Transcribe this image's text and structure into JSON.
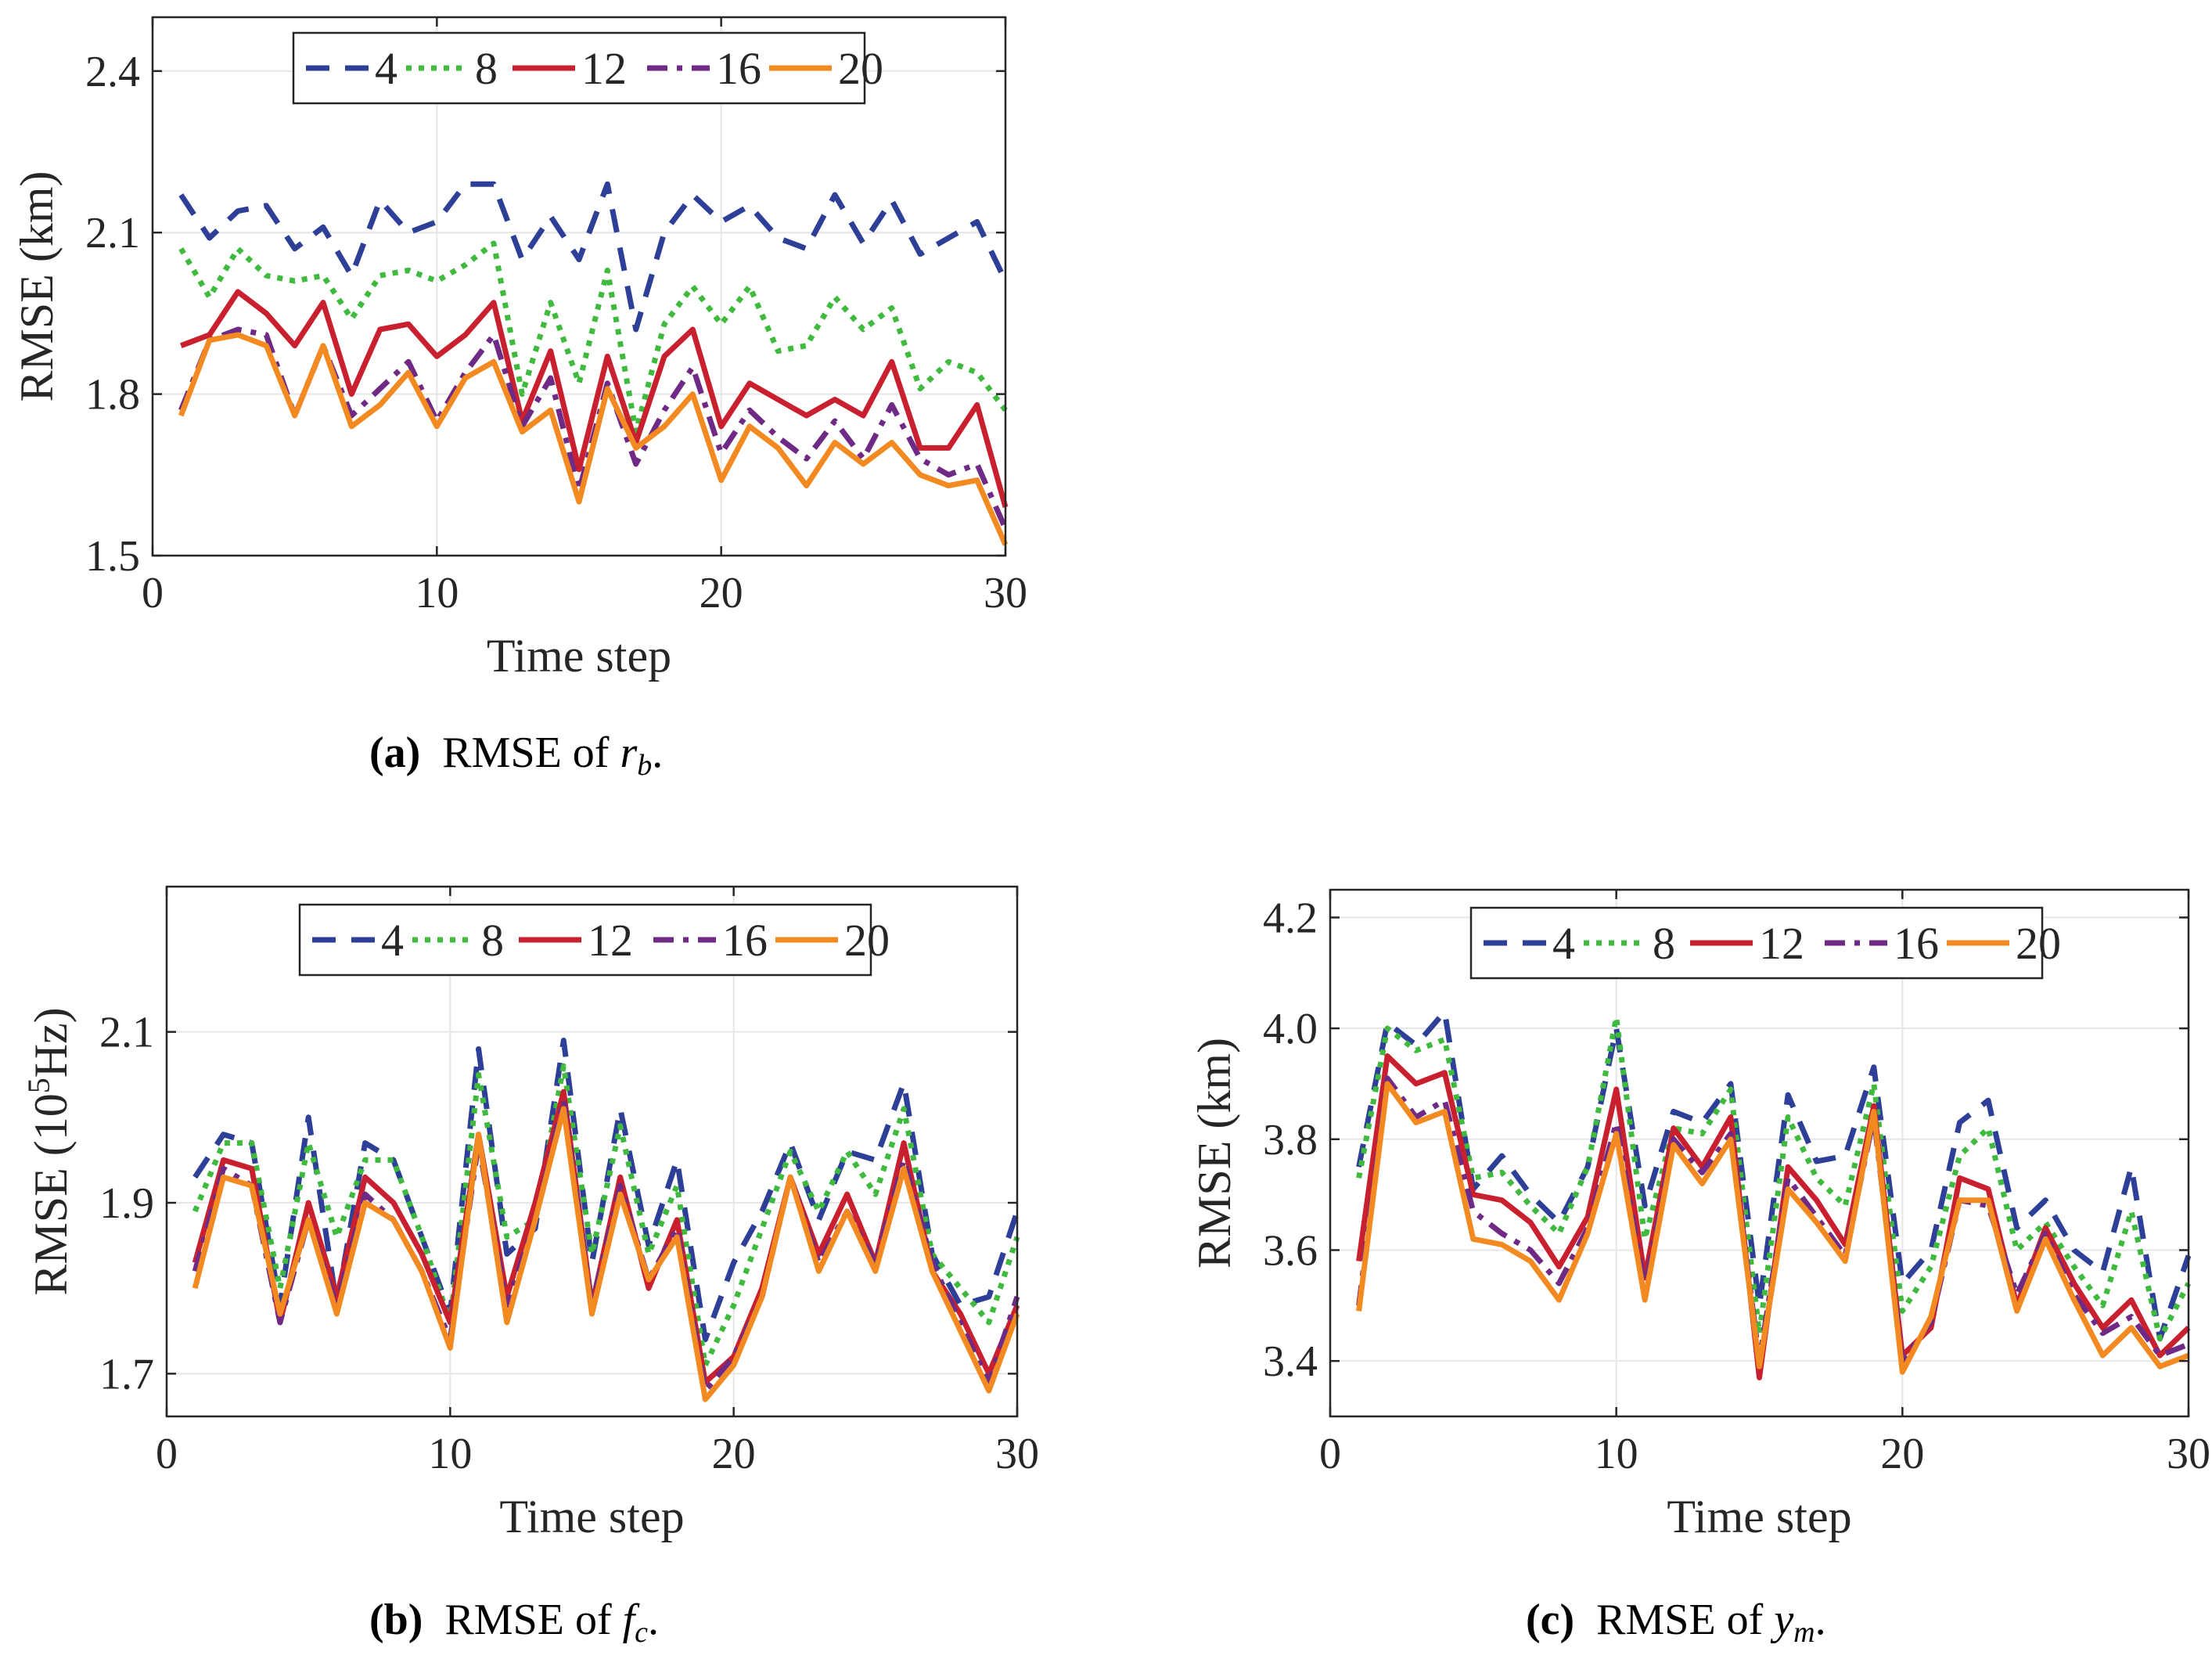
{
  "colors": {
    "s4": "#2e3f97",
    "s8": "#3fba3f",
    "s12": "#c8202e",
    "s16": "#6e2a85",
    "s20": "#f28a21",
    "axis": "#262626",
    "grid": "#e6e6e6"
  },
  "chart_data": [
    {
      "id": "a",
      "type": "line",
      "ylabel": "RMSE (km)",
      "ylabel_parts": [
        {
          "t": "RMSE (km)"
        }
      ],
      "xlabel": "Time step",
      "xlim": [
        0,
        30
      ],
      "ylim": [
        1.5,
        2.5
      ],
      "xticks": [
        0,
        10,
        20,
        30
      ],
      "yticks": [
        1.5,
        1.8,
        2.1,
        2.4
      ],
      "ytick_labels": [
        "1.5",
        "1.8",
        "2.1",
        "2.4"
      ],
      "x": [
        1,
        2,
        3,
        4,
        5,
        6,
        7,
        8,
        9,
        10,
        11,
        12,
        13,
        14,
        15,
        16,
        17,
        18,
        19,
        20,
        21,
        22,
        23,
        24,
        25,
        26,
        27,
        28,
        29,
        30
      ],
      "series": [
        {
          "name": "4",
          "style": "dash",
          "values": [
            2.17,
            2.09,
            2.14,
            2.15,
            2.07,
            2.11,
            2.02,
            2.16,
            2.1,
            2.12,
            2.19,
            2.19,
            2.05,
            2.13,
            2.05,
            2.19,
            1.92,
            2.1,
            2.17,
            2.12,
            2.15,
            2.09,
            2.07,
            2.17,
            2.08,
            2.16,
            2.06,
            2.09,
            2.12,
            2.01
          ]
        },
        {
          "name": "8",
          "style": "dot",
          "values": [
            2.07,
            1.98,
            2.07,
            2.02,
            2.01,
            2.02,
            1.94,
            2.02,
            2.03,
            2.01,
            2.04,
            2.08,
            1.8,
            1.97,
            1.82,
            2.03,
            1.73,
            1.93,
            2.0,
            1.93,
            2.0,
            1.88,
            1.89,
            1.98,
            1.92,
            1.96,
            1.81,
            1.86,
            1.84,
            1.77
          ]
        },
        {
          "name": "12",
          "style": "solid",
          "values": [
            1.89,
            1.91,
            1.99,
            1.95,
            1.89,
            1.97,
            1.8,
            1.92,
            1.93,
            1.87,
            1.91,
            1.97,
            1.75,
            1.88,
            1.66,
            1.87,
            1.71,
            1.87,
            1.92,
            1.74,
            1.82,
            1.79,
            1.76,
            1.79,
            1.76,
            1.86,
            1.7,
            1.7,
            1.78,
            1.59
          ]
        },
        {
          "name": "16",
          "style": "dashdot",
          "values": [
            1.77,
            1.9,
            1.92,
            1.91,
            1.76,
            1.89,
            1.76,
            1.81,
            1.86,
            1.75,
            1.84,
            1.91,
            1.74,
            1.83,
            1.62,
            1.82,
            1.67,
            1.77,
            1.85,
            1.69,
            1.77,
            1.72,
            1.68,
            1.75,
            1.68,
            1.78,
            1.68,
            1.65,
            1.67,
            1.55
          ]
        },
        {
          "name": "20",
          "style": "solid",
          "values": [
            1.76,
            1.9,
            1.91,
            1.89,
            1.76,
            1.89,
            1.74,
            1.78,
            1.84,
            1.74,
            1.83,
            1.86,
            1.73,
            1.77,
            1.6,
            1.81,
            1.7,
            1.74,
            1.8,
            1.64,
            1.74,
            1.7,
            1.63,
            1.71,
            1.67,
            1.71,
            1.65,
            1.63,
            1.64,
            1.52
          ]
        }
      ]
    },
    {
      "id": "b",
      "type": "line",
      "ylabel": "RMSE (10^5Hz)",
      "ylabel_parts": [
        {
          "t": "RMSE (10"
        },
        {
          "t": "5",
          "sup": true
        },
        {
          "t": "Hz)"
        }
      ],
      "xlabel": "Time step",
      "xlim": [
        0,
        30
      ],
      "ylim": [
        1.65,
        2.27
      ],
      "xticks": [
        0,
        10,
        20,
        30
      ],
      "yticks": [
        1.7,
        1.9,
        2.1
      ],
      "ytick_labels": [
        "1.7",
        "1.9",
        "2.1"
      ],
      "x": [
        1,
        2,
        3,
        4,
        5,
        6,
        7,
        8,
        9,
        10,
        11,
        12,
        13,
        14,
        15,
        16,
        17,
        18,
        19,
        20,
        21,
        22,
        23,
        24,
        25,
        26,
        27,
        28,
        29,
        30
      ],
      "series": [
        {
          "name": "4",
          "style": "dash",
          "values": [
            1.93,
            1.98,
            1.97,
            1.78,
            2.0,
            1.78,
            1.97,
            1.95,
            1.86,
            1.77,
            2.08,
            1.84,
            1.87,
            2.09,
            1.83,
            2.01,
            1.85,
            1.95,
            1.74,
            1.83,
            1.89,
            1.97,
            1.88,
            1.96,
            1.95,
            2.04,
            1.84,
            1.78,
            1.79,
            1.89
          ]
        },
        {
          "name": "8",
          "style": "dot",
          "values": [
            1.89,
            1.97,
            1.97,
            1.8,
            1.97,
            1.86,
            1.95,
            1.95,
            1.86,
            1.76,
            2.05,
            1.86,
            1.88,
            2.06,
            1.84,
            1.99,
            1.84,
            1.92,
            1.71,
            1.78,
            1.87,
            1.96,
            1.89,
            1.96,
            1.91,
            2.01,
            1.84,
            1.8,
            1.76,
            1.86
          ]
        },
        {
          "name": "12",
          "style": "solid",
          "values": [
            1.83,
            1.95,
            1.94,
            1.76,
            1.9,
            1.79,
            1.93,
            1.9,
            1.84,
            1.76,
            1.98,
            1.79,
            1.9,
            2.03,
            1.78,
            1.93,
            1.8,
            1.88,
            1.69,
            1.72,
            1.8,
            1.93,
            1.84,
            1.91,
            1.83,
            1.97,
            1.82,
            1.77,
            1.7,
            1.78
          ]
        },
        {
          "name": "16",
          "style": "dashdot",
          "values": [
            1.82,
            1.94,
            1.92,
            1.76,
            1.88,
            1.78,
            1.91,
            1.88,
            1.82,
            1.74,
            1.97,
            1.78,
            1.88,
            2.02,
            1.78,
            1.92,
            1.81,
            1.87,
            1.68,
            1.72,
            1.79,
            1.93,
            1.83,
            1.89,
            1.83,
            1.95,
            1.83,
            1.76,
            1.69,
            1.79
          ]
        },
        {
          "name": "20",
          "style": "solid",
          "values": [
            1.8,
            1.93,
            1.92,
            1.77,
            1.88,
            1.77,
            1.9,
            1.88,
            1.82,
            1.73,
            1.98,
            1.76,
            1.88,
            2.01,
            1.77,
            1.91,
            1.81,
            1.86,
            1.67,
            1.71,
            1.79,
            1.93,
            1.82,
            1.89,
            1.82,
            1.94,
            1.82,
            1.75,
            1.68,
            1.77
          ]
        }
      ]
    },
    {
      "id": "c",
      "type": "line",
      "ylabel": "RMSE (km)",
      "ylabel_parts": [
        {
          "t": "RMSE (km)"
        }
      ],
      "xlabel": "Time step",
      "xlim": [
        0,
        30
      ],
      "ylim": [
        3.3,
        4.25
      ],
      "xticks": [
        0,
        10,
        20,
        30
      ],
      "yticks": [
        3.4,
        3.6,
        3.8,
        4.0,
        4.2
      ],
      "ytick_labels": [
        "3.4",
        "3.6",
        "3.8",
        "4.0",
        "4.2"
      ],
      "x": [
        1,
        2,
        3,
        4,
        5,
        6,
        7,
        8,
        9,
        10,
        11,
        12,
        13,
        14,
        15,
        16,
        17,
        18,
        19,
        20,
        21,
        22,
        23,
        24,
        25,
        26,
        27,
        28,
        29,
        30
      ],
      "series": [
        {
          "name": "4",
          "style": "dash",
          "values": [
            3.75,
            4.01,
            3.97,
            4.03,
            3.71,
            3.77,
            3.7,
            3.65,
            3.75,
            4.0,
            3.68,
            3.85,
            3.83,
            3.9,
            3.5,
            3.88,
            3.76,
            3.77,
            3.93,
            3.54,
            3.6,
            3.83,
            3.87,
            3.64,
            3.69,
            3.6,
            3.56,
            3.75,
            3.44,
            3.59
          ]
        },
        {
          "name": "8",
          "style": "dot",
          "values": [
            3.73,
            4.0,
            3.96,
            3.98,
            3.73,
            3.74,
            3.68,
            3.63,
            3.75,
            4.02,
            3.62,
            3.82,
            3.81,
            3.89,
            3.45,
            3.84,
            3.73,
            3.68,
            3.9,
            3.49,
            3.57,
            3.77,
            3.82,
            3.6,
            3.65,
            3.57,
            3.5,
            3.67,
            3.44,
            3.54
          ]
        },
        {
          "name": "12",
          "style": "solid",
          "values": [
            3.58,
            3.95,
            3.9,
            3.92,
            3.7,
            3.69,
            3.65,
            3.57,
            3.66,
            3.89,
            3.55,
            3.82,
            3.75,
            3.84,
            3.37,
            3.75,
            3.69,
            3.61,
            3.86,
            3.41,
            3.46,
            3.73,
            3.71,
            3.5,
            3.64,
            3.54,
            3.46,
            3.51,
            3.41,
            3.46
          ]
        },
        {
          "name": "16",
          "style": "dashdot",
          "values": [
            3.5,
            3.91,
            3.84,
            3.87,
            3.67,
            3.63,
            3.6,
            3.54,
            3.64,
            3.83,
            3.53,
            3.8,
            3.74,
            3.81,
            3.4,
            3.73,
            3.66,
            3.59,
            3.84,
            3.4,
            3.47,
            3.69,
            3.68,
            3.52,
            3.63,
            3.52,
            3.45,
            3.48,
            3.41,
            3.43
          ]
        },
        {
          "name": "20",
          "style": "solid",
          "values": [
            3.49,
            3.9,
            3.83,
            3.85,
            3.62,
            3.61,
            3.58,
            3.51,
            3.63,
            3.81,
            3.51,
            3.79,
            3.72,
            3.8,
            3.39,
            3.71,
            3.65,
            3.58,
            3.85,
            3.38,
            3.48,
            3.69,
            3.69,
            3.49,
            3.62,
            3.51,
            3.41,
            3.46,
            3.39,
            3.41
          ]
        }
      ]
    }
  ],
  "captions": [
    {
      "label": "(a)",
      "text": "RMSE of ",
      "var": "r",
      "sub": "b",
      "end": "."
    },
    {
      "label": "(b)",
      "text": "RMSE of ",
      "var": "f",
      "sub": "c",
      "end": "."
    },
    {
      "label": "(c)",
      "text": "RMSE of ",
      "var": "y",
      "sub": "m",
      "end": "."
    }
  ]
}
